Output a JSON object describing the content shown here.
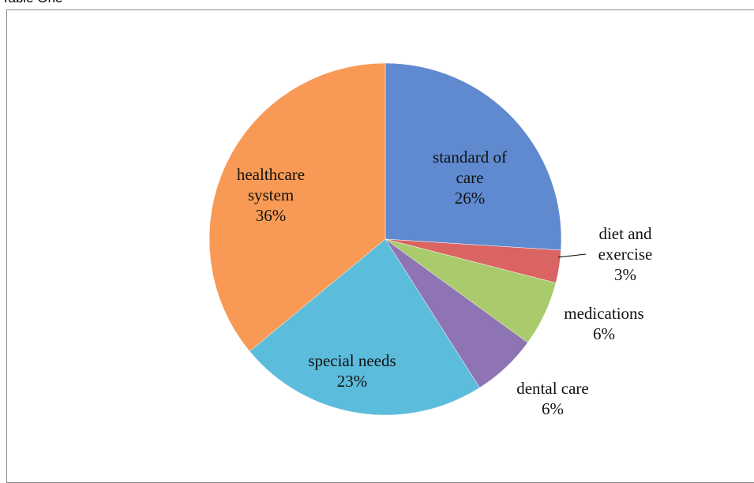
{
  "chart_data": {
    "type": "pie",
    "title": "Table One",
    "categories": [
      "standard of care",
      "diet and exercise",
      "medications",
      "dental care",
      "special needs",
      "healthcare system"
    ],
    "values": [
      26,
      3,
      6,
      6,
      23,
      36
    ],
    "value_labels": [
      "26%",
      "3%",
      "6%",
      "6%",
      "23%",
      "36%"
    ],
    "colors": [
      "#5f8ad0",
      "#d96462",
      "#a9cb6c",
      "#8f74b3",
      "#5cbcdb",
      "#f89a55"
    ]
  }
}
